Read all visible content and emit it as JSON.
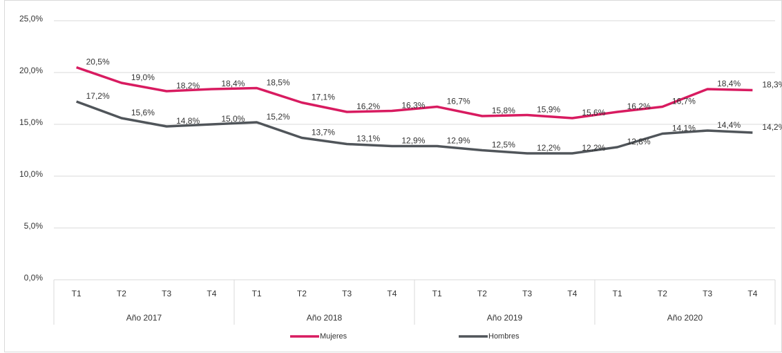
{
  "chart_data": {
    "type": "line",
    "categories": [
      "T1",
      "T2",
      "T3",
      "T4",
      "T1",
      "T2",
      "T3",
      "T4",
      "T1",
      "T2",
      "T3",
      "T4",
      "T1",
      "T2",
      "T3",
      "T4"
    ],
    "category_groups": [
      "Año 2017",
      "Año 2018",
      "Año 2019",
      "Año 2020"
    ],
    "series": [
      {
        "name": "Mujeres",
        "color": "#d81b60",
        "values": [
          20.5,
          19.0,
          18.2,
          18.4,
          18.5,
          17.1,
          16.2,
          16.3,
          16.7,
          15.8,
          15.9,
          15.6,
          16.2,
          16.7,
          18.4,
          18.3
        ],
        "value_labels": [
          "20,5%",
          "19,0%",
          "18,2%",
          "18,4%",
          "18,5%",
          "17,1%",
          "16,2%",
          "16,3%",
          "16,7%",
          "15,8%",
          "15,9%",
          "15,6%",
          "16,2%",
          "16,7%",
          "18,4%",
          "18,3%"
        ]
      },
      {
        "name": "Hombres",
        "color": "#50555a",
        "values": [
          17.2,
          15.6,
          14.8,
          15.0,
          15.2,
          13.7,
          13.1,
          12.9,
          12.9,
          12.5,
          12.2,
          12.2,
          12.8,
          14.1,
          14.4,
          14.2
        ],
        "value_labels": [
          "17,2%",
          "15,6%",
          "14,8%",
          "15,0%",
          "15,2%",
          "13,7%",
          "13,1%",
          "12,9%",
          "12,9%",
          "12,5%",
          "12,2%",
          "12,2%",
          "12,8%",
          "14,1%",
          "14,4%",
          "14,2%"
        ]
      }
    ],
    "ylim": [
      0,
      25
    ],
    "yticks": [
      {
        "value": 0,
        "label": "0,0%"
      },
      {
        "value": 5,
        "label": "5,0%"
      },
      {
        "value": 10,
        "label": "10,0%"
      },
      {
        "value": 15,
        "label": "15,0%"
      },
      {
        "value": 20,
        "label": "20,0%"
      },
      {
        "value": 25,
        "label": "25,0%"
      }
    ],
    "grid": true,
    "legend": "bottom"
  }
}
